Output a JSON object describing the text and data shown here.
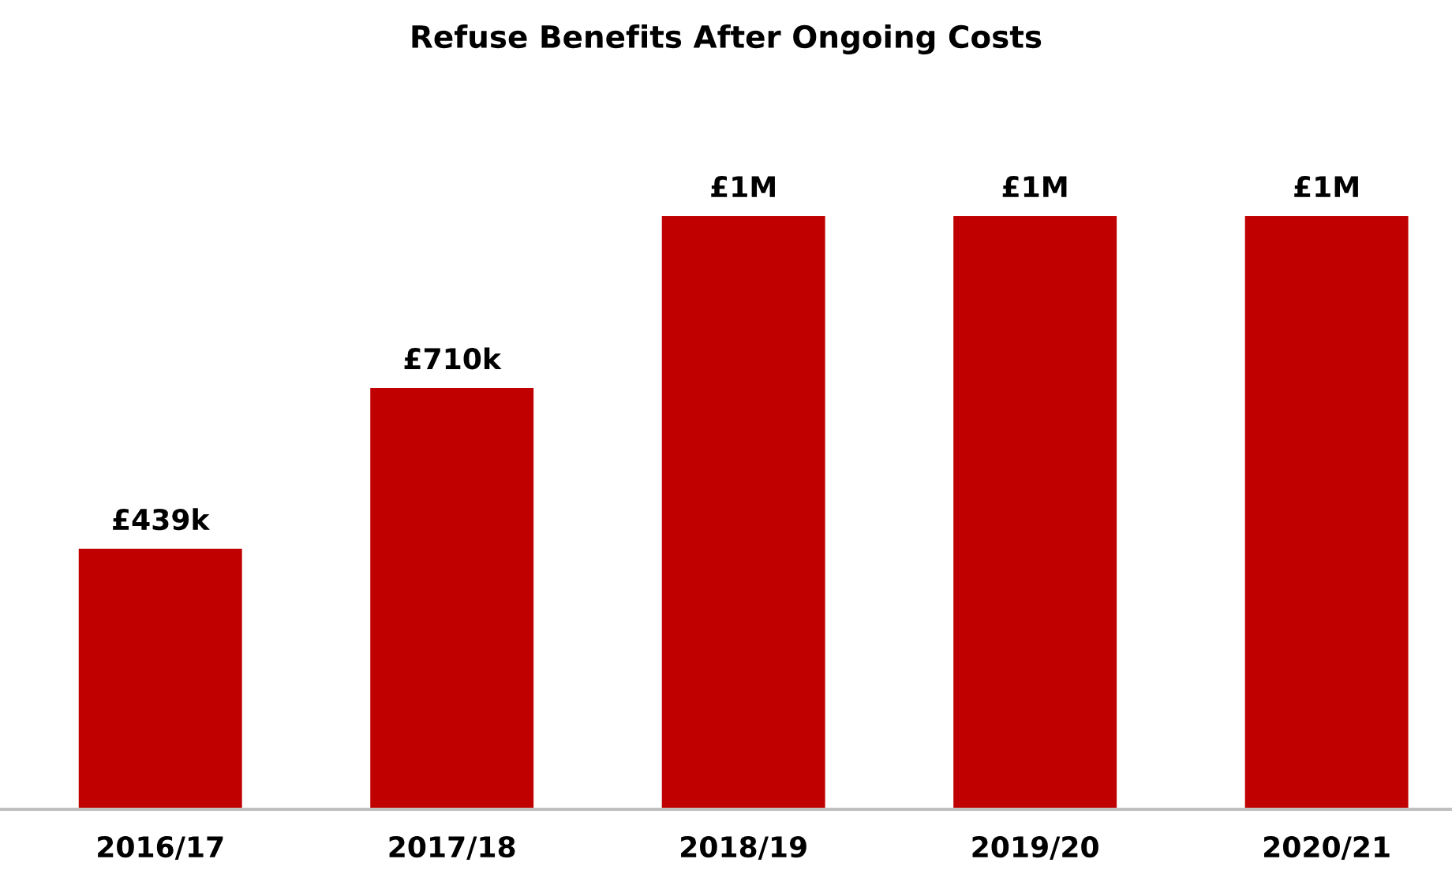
{
  "chart_data": {
    "type": "bar",
    "title": "Refuse Benefits After Ongoing Costs",
    "categories": [
      "2016/17",
      "2017/18",
      "2018/19",
      "2019/20",
      "2020/21"
    ],
    "values": [
      439000,
      710000,
      1000000,
      1000000,
      1000000
    ],
    "value_labels": [
      "£439k",
      "£710k",
      "£1M",
      "£1M",
      "£1M"
    ],
    "color": "#c00000",
    "grid": false,
    "legend": false
  }
}
